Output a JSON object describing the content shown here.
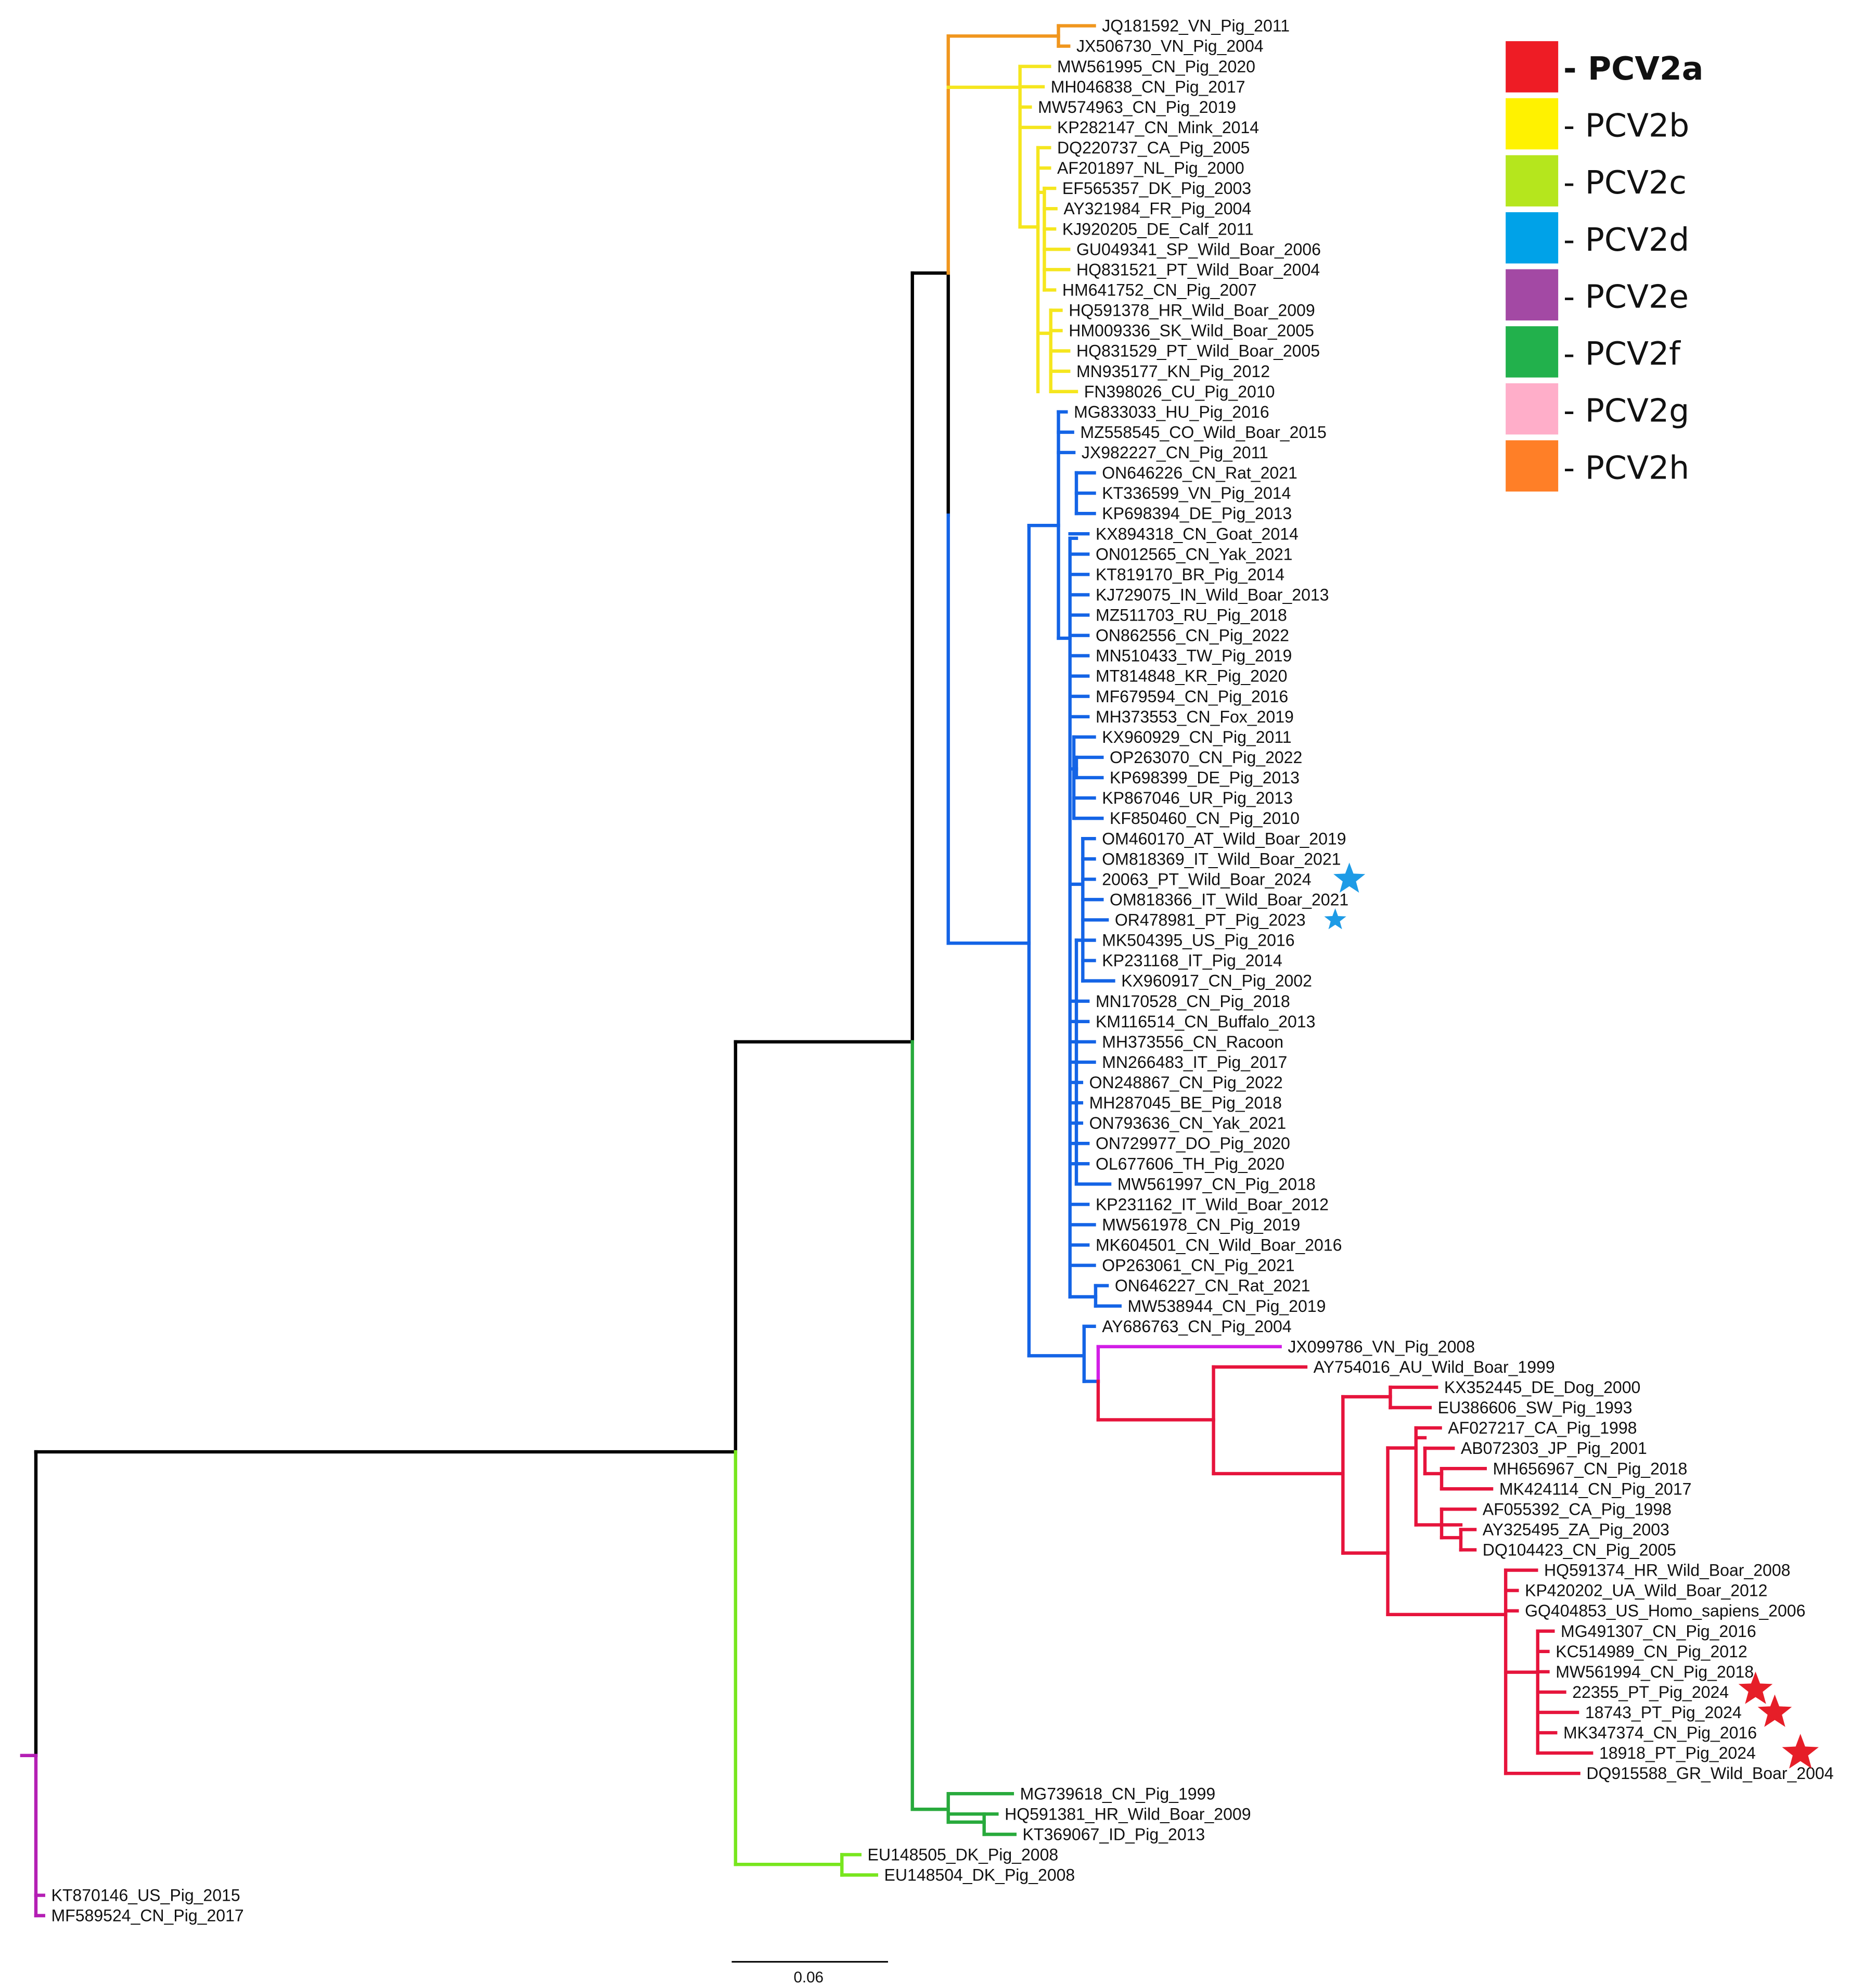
{
  "colors": {
    "backbone": "#000000",
    "PCV2h": "#f0961e",
    "PCV2b": "#f5e61e",
    "PCV2d": "#1464e6",
    "PCV2e": "#d21ee6",
    "PCV2a": "#e6143c",
    "PCV2f": "#28aa3c",
    "PCV2c": "#78e61e",
    "outgroup": "#b41eb4"
  },
  "legend": [
    {
      "label": "- PCV2a",
      "color": "#ee1c25",
      "bold": true
    },
    {
      "label": "- PCV2b",
      "color": "#fff200"
    },
    {
      "label": "- PCV2c",
      "color": "#b5e61d"
    },
    {
      "label": "- PCV2d",
      "color": "#00a2e8"
    },
    {
      "label": "- PCV2e",
      "color": "#a349a4"
    },
    {
      "label": "- PCV2f",
      "color": "#22b14c"
    },
    {
      "label": "- PCV2g",
      "color": "#ffaec9"
    },
    {
      "label": "- PCV2h",
      "color": "#ff7f27"
    }
  ],
  "scale_bar": {
    "label": "0.06"
  },
  "star_markers": [
    {
      "leaf": "20063_PT_Wild_Boar_2024",
      "color": "#1e9be6"
    },
    {
      "leaf": "OR478981_PT_Pig_2023",
      "color": "#1e9be6"
    },
    {
      "leaf": "22355_PT_Pig_2024",
      "color": "#e61e28"
    },
    {
      "leaf": "18743_PT_Pig_2024",
      "color": "#e61e28"
    },
    {
      "leaf": "18918_PT_Pig_2024",
      "color": "#e61e28"
    }
  ],
  "leaves": [
    {
      "label": "JQ181592_VN_Pig_2011",
      "clade": "PCV2h"
    },
    {
      "label": "JX506730_VN_Pig_2004",
      "clade": "PCV2h"
    },
    {
      "label": "MW561995_CN_Pig_2020",
      "clade": "PCV2b"
    },
    {
      "label": "MH046838_CN_Pig_2017",
      "clade": "PCV2b"
    },
    {
      "label": "MW574963_CN_Pig_2019",
      "clade": "PCV2b"
    },
    {
      "label": "KP282147_CN_Mink_2014",
      "clade": "PCV2b"
    },
    {
      "label": "DQ220737_CA_Pig_2005",
      "clade": "PCV2b"
    },
    {
      "label": "AF201897_NL_Pig_2000",
      "clade": "PCV2b"
    },
    {
      "label": "EF565357_DK_Pig_2003",
      "clade": "PCV2b"
    },
    {
      "label": "AY321984_FR_Pig_2004",
      "clade": "PCV2b"
    },
    {
      "label": "KJ920205_DE_Calf_2011",
      "clade": "PCV2b"
    },
    {
      "label": "GU049341_SP_Wild_Boar_2006",
      "clade": "PCV2b"
    },
    {
      "label": "HQ831521_PT_Wild_Boar_2004",
      "clade": "PCV2b"
    },
    {
      "label": "HM641752_CN_Pig_2007",
      "clade": "PCV2b"
    },
    {
      "label": "HQ591378_HR_Wild_Boar_2009",
      "clade": "PCV2b"
    },
    {
      "label": "HM009336_SK_Wild_Boar_2005",
      "clade": "PCV2b"
    },
    {
      "label": "HQ831529_PT_Wild_Boar_2005",
      "clade": "PCV2b"
    },
    {
      "label": "MN935177_KN_Pig_2012",
      "clade": "PCV2b"
    },
    {
      "label": "FN398026_CU_Pig_2010",
      "clade": "PCV2b"
    },
    {
      "label": "MG833033_HU_Pig_2016",
      "clade": "PCV2d"
    },
    {
      "label": "MZ558545_CO_Wild_Boar_2015",
      "clade": "PCV2d"
    },
    {
      "label": "JX982227_CN_Pig_2011",
      "clade": "PCV2d"
    },
    {
      "label": "ON646226_CN_Rat_2021",
      "clade": "PCV2d"
    },
    {
      "label": "KT336599_VN_Pig_2014",
      "clade": "PCV2d"
    },
    {
      "label": "KP698394_DE_Pig_2013",
      "clade": "PCV2d"
    },
    {
      "label": "KX894318_CN_Goat_2014",
      "clade": "PCV2d"
    },
    {
      "label": "ON012565_CN_Yak_2021",
      "clade": "PCV2d"
    },
    {
      "label": "KT819170_BR_Pig_2014",
      "clade": "PCV2d"
    },
    {
      "label": "KJ729075_IN_Wild_Boar_2013",
      "clade": "PCV2d"
    },
    {
      "label": "MZ511703_RU_Pig_2018",
      "clade": "PCV2d"
    },
    {
      "label": "ON862556_CN_Pig_2022",
      "clade": "PCV2d"
    },
    {
      "label": "MN510433_TW_Pig_2019",
      "clade": "PCV2d"
    },
    {
      "label": "MT814848_KR_Pig_2020",
      "clade": "PCV2d"
    },
    {
      "label": "MF679594_CN_Pig_2016",
      "clade": "PCV2d"
    },
    {
      "label": "MH373553_CN_Fox_2019",
      "clade": "PCV2d"
    },
    {
      "label": "KX960929_CN_Pig_2011",
      "clade": "PCV2d"
    },
    {
      "label": "OP263070_CN_Pig_2022",
      "clade": "PCV2d"
    },
    {
      "label": "KP698399_DE_Pig_2013",
      "clade": "PCV2d"
    },
    {
      "label": "KP867046_UR_Pig_2013",
      "clade": "PCV2d"
    },
    {
      "label": "KF850460_CN_Pig_2010",
      "clade": "PCV2d"
    },
    {
      "label": "OM460170_AT_Wild_Boar_2019",
      "clade": "PCV2d"
    },
    {
      "label": "OM818369_IT_Wild_Boar_2021",
      "clade": "PCV2d"
    },
    {
      "label": "20063_PT_Wild_Boar_2024",
      "clade": "PCV2d"
    },
    {
      "label": "OM818366_IT_Wild_Boar_2021",
      "clade": "PCV2d"
    },
    {
      "label": "OR478981_PT_Pig_2023",
      "clade": "PCV2d"
    },
    {
      "label": "MK504395_US_Pig_2016",
      "clade": "PCV2d"
    },
    {
      "label": "KP231168_IT_Pig_2014",
      "clade": "PCV2d"
    },
    {
      "label": "KX960917_CN_Pig_2002",
      "clade": "PCV2d"
    },
    {
      "label": "MN170528_CN_Pig_2018",
      "clade": "PCV2d"
    },
    {
      "label": "KM116514_CN_Buffalo_2013",
      "clade": "PCV2d"
    },
    {
      "label": "MH373556_CN_Racoon",
      "clade": "PCV2d"
    },
    {
      "label": "MN266483_IT_Pig_2017",
      "clade": "PCV2d"
    },
    {
      "label": "ON248867_CN_Pig_2022",
      "clade": "PCV2d"
    },
    {
      "label": "MH287045_BE_Pig_2018",
      "clade": "PCV2d"
    },
    {
      "label": "ON793636_CN_Yak_2021",
      "clade": "PCV2d"
    },
    {
      "label": "ON729977_DO_Pig_2020",
      "clade": "PCV2d"
    },
    {
      "label": "OL677606_TH_Pig_2020",
      "clade": "PCV2d"
    },
    {
      "label": "MW561997_CN_Pig_2018",
      "clade": "PCV2d"
    },
    {
      "label": "KP231162_IT_Wild_Boar_2012",
      "clade": "PCV2d"
    },
    {
      "label": "MW561978_CN_Pig_2019",
      "clade": "PCV2d"
    },
    {
      "label": "MK604501_CN_Wild_Boar_2016",
      "clade": "PCV2d"
    },
    {
      "label": "OP263061_CN_Pig_2021",
      "clade": "PCV2d"
    },
    {
      "label": "ON646227_CN_Rat_2021",
      "clade": "PCV2d"
    },
    {
      "label": "MW538944_CN_Pig_2019",
      "clade": "PCV2d"
    },
    {
      "label": "AY686763_CN_Pig_2004",
      "clade": "PCV2d"
    },
    {
      "label": "JX099786_VN_Pig_2008",
      "clade": "PCV2e"
    },
    {
      "label": "AY754016_AU_Wild_Boar_1999",
      "clade": "PCV2a"
    },
    {
      "label": "KX352445_DE_Dog_2000",
      "clade": "PCV2a"
    },
    {
      "label": "EU386606_SW_Pig_1993",
      "clade": "PCV2a"
    },
    {
      "label": "AF027217_CA_Pig_1998",
      "clade": "PCV2a"
    },
    {
      "label": "AB072303_JP_Pig_2001",
      "clade": "PCV2a"
    },
    {
      "label": "MH656967_CN_Pig_2018",
      "clade": "PCV2a"
    },
    {
      "label": "MK424114_CN_Pig_2017",
      "clade": "PCV2a"
    },
    {
      "label": "AF055392_CA_Pig_1998",
      "clade": "PCV2a"
    },
    {
      "label": "AY325495_ZA_Pig_2003",
      "clade": "PCV2a"
    },
    {
      "label": "DQ104423_CN_Pig_2005",
      "clade": "PCV2a"
    },
    {
      "label": "HQ591374_HR_Wild_Boar_2008",
      "clade": "PCV2a"
    },
    {
      "label": "KP420202_UA_Wild_Boar_2012",
      "clade": "PCV2a"
    },
    {
      "label": "GQ404853_US_Homo_sapiens_2006",
      "clade": "PCV2a"
    },
    {
      "label": "MG491307_CN_Pig_2016",
      "clade": "PCV2a"
    },
    {
      "label": "KC514989_CN_Pig_2012",
      "clade": "PCV2a"
    },
    {
      "label": "MW561994_CN_Pig_2018",
      "clade": "PCV2a"
    },
    {
      "label": "22355_PT_Pig_2024",
      "clade": "PCV2a"
    },
    {
      "label": "18743_PT_Pig_2024",
      "clade": "PCV2a"
    },
    {
      "label": "MK347374_CN_Pig_2016",
      "clade": "PCV2a"
    },
    {
      "label": "18918_PT_Pig_2024",
      "clade": "PCV2a"
    },
    {
      "label": "DQ915588_GR_Wild_Boar_2004",
      "clade": "PCV2a"
    },
    {
      "label": "MG739618_CN_Pig_1999",
      "clade": "PCV2f"
    },
    {
      "label": "HQ591381_HR_Wild_Boar_2009",
      "clade": "PCV2f"
    },
    {
      "label": "KT369067_ID_Pig_2013",
      "clade": "PCV2f"
    },
    {
      "label": "EU148505_DK_Pig_2008",
      "clade": "PCV2c"
    },
    {
      "label": "EU148504_DK_Pig_2008",
      "clade": "PCV2c"
    },
    {
      "label": "KT870146_US_Pig_2015",
      "clade": "outgroup"
    },
    {
      "label": "MF589524_CN_Pig_2017",
      "clade": "outgroup"
    }
  ]
}
